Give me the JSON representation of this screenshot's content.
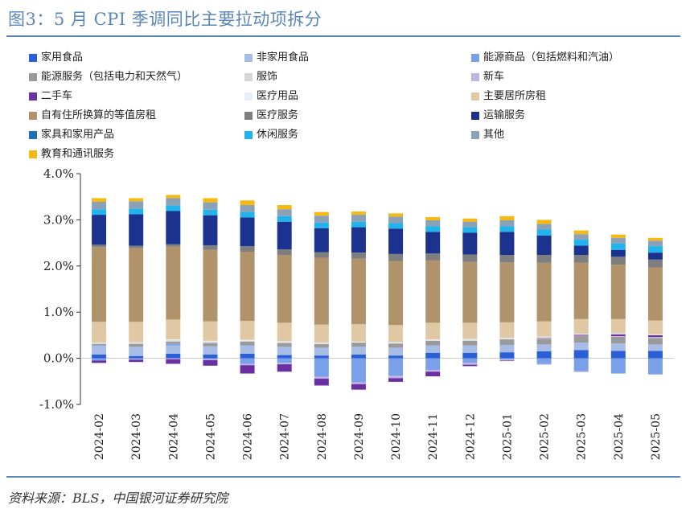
{
  "header": {
    "title": "图3：5 月 CPI 季调同比主要拉动项拆分"
  },
  "footer": {
    "source": "资料来源：BLS，中国银河证券研究院"
  },
  "chart_data": {
    "type": "bar",
    "stacked": true,
    "categories": [
      "2024-02",
      "2024-03",
      "2024-04",
      "2024-05",
      "2024-06",
      "2024-07",
      "2024-08",
      "2024-09",
      "2024-10",
      "2024-11",
      "2024-12",
      "2025-01",
      "2025-02",
      "2025-03",
      "2025-04",
      "2025-05"
    ],
    "ylim": [
      -1.0,
      4.0
    ],
    "yticks": [
      "4.0%",
      "3.0%",
      "2.0%",
      "1.0%",
      "0.0%",
      "-1.0%"
    ],
    "ytick_values": [
      4.0,
      3.0,
      2.0,
      1.0,
      0.0,
      -1.0
    ],
    "legend_placement": "top",
    "series": [
      {
        "name": "家用食品",
        "color": "#2a5fd6",
        "values": [
          0.08,
          0.05,
          0.1,
          0.08,
          0.1,
          0.07,
          0.06,
          0.08,
          0.06,
          0.12,
          0.12,
          0.13,
          0.15,
          0.18,
          0.16,
          0.16
        ]
      },
      {
        "name": "非家用食品",
        "color": "#a7bde6",
        "values": [
          0.2,
          0.2,
          0.18,
          0.18,
          0.18,
          0.18,
          0.17,
          0.17,
          0.17,
          0.16,
          0.16,
          0.16,
          0.15,
          0.16,
          0.16,
          0.14
        ]
      },
      {
        "name": "能源商品（包括燃料和汽油）",
        "color": "#7aa0ea",
        "values": [
          -0.05,
          -0.02,
          0.03,
          -0.02,
          -0.12,
          -0.1,
          -0.4,
          -0.52,
          -0.38,
          -0.25,
          -0.1,
          -0.02,
          -0.12,
          -0.28,
          -0.33,
          -0.35
        ]
      },
      {
        "name": "能源服务（包括电力和天然气）",
        "color": "#9a9a9a",
        "values": [
          0.03,
          0.06,
          0.05,
          0.07,
          0.08,
          0.08,
          0.08,
          0.09,
          0.09,
          0.1,
          0.1,
          0.12,
          0.12,
          0.14,
          0.15,
          0.14
        ]
      },
      {
        "name": "服饰",
        "color": "#d6d6d6",
        "values": [
          0.02,
          0.03,
          0.03,
          0.03,
          0.02,
          0.02,
          0.01,
          0.0,
          0.01,
          0.01,
          0.02,
          0.01,
          0.02,
          0.01,
          0.01,
          0.01
        ]
      },
      {
        "name": "新车",
        "color": "#c3b4e6",
        "values": [
          0.0,
          -0.01,
          -0.02,
          -0.02,
          -0.03,
          -0.03,
          -0.04,
          -0.04,
          -0.05,
          -0.04,
          -0.04,
          -0.03,
          -0.02,
          -0.02,
          0.0,
          0.01
        ]
      },
      {
        "name": "二手车",
        "color": "#6a2fa0",
        "values": [
          -0.05,
          -0.05,
          -0.1,
          -0.12,
          -0.18,
          -0.16,
          -0.15,
          -0.12,
          -0.08,
          -0.1,
          -0.03,
          -0.01,
          0.01,
          0.02,
          0.04,
          0.04
        ]
      },
      {
        "name": "医疗用品",
        "color": "#e9eff8",
        "values": [
          0.01,
          0.01,
          0.02,
          0.02,
          0.02,
          0.02,
          0.02,
          0.02,
          0.02,
          0.02,
          0.02,
          0.02,
          0.02,
          0.02,
          0.02,
          0.02
        ]
      },
      {
        "name": "主要居所房租",
        "color": "#e0c8a5",
        "values": [
          0.45,
          0.44,
          0.43,
          0.42,
          0.41,
          0.4,
          0.39,
          0.38,
          0.37,
          0.36,
          0.35,
          0.34,
          0.33,
          0.32,
          0.31,
          0.3
        ]
      },
      {
        "name": "自有住所换算的等值房租",
        "color": "#b0936a",
        "values": [
          1.62,
          1.6,
          1.58,
          1.55,
          1.5,
          1.47,
          1.45,
          1.42,
          1.39,
          1.35,
          1.32,
          1.3,
          1.27,
          1.22,
          1.18,
          1.15
        ]
      },
      {
        "name": "医疗服务",
        "color": "#7e7e7e",
        "values": [
          0.05,
          0.05,
          0.05,
          0.1,
          0.12,
          0.12,
          0.12,
          0.13,
          0.15,
          0.15,
          0.16,
          0.16,
          0.17,
          0.17,
          0.17,
          0.17
        ]
      },
      {
        "name": "运输服务",
        "color": "#1b338f",
        "values": [
          0.65,
          0.68,
          0.72,
          0.65,
          0.62,
          0.6,
          0.52,
          0.55,
          0.55,
          0.47,
          0.47,
          0.5,
          0.42,
          0.2,
          0.15,
          0.15
        ]
      },
      {
        "name": "家具和家用产品",
        "color": "#1f6fb8",
        "values": [
          0.0,
          0.0,
          0.0,
          0.0,
          0.0,
          0.0,
          0.0,
          0.0,
          0.0,
          0.0,
          0.0,
          0.0,
          0.0,
          0.0,
          0.0,
          0.0
        ]
      },
      {
        "name": "休闲服务",
        "color": "#22b3ec",
        "values": [
          0.12,
          0.12,
          0.12,
          0.12,
          0.12,
          0.12,
          0.12,
          0.12,
          0.12,
          0.12,
          0.12,
          0.12,
          0.13,
          0.13,
          0.14,
          0.14
        ]
      },
      {
        "name": "其他",
        "color": "#8aa1b8",
        "values": [
          0.16,
          0.16,
          0.16,
          0.16,
          0.15,
          0.15,
          0.15,
          0.15,
          0.14,
          0.13,
          0.12,
          0.13,
          0.12,
          0.12,
          0.12,
          0.12
        ]
      },
      {
        "name": "教育和通讯服务",
        "color": "#f5b912",
        "values": [
          0.08,
          0.07,
          0.07,
          0.09,
          0.1,
          0.09,
          0.08,
          0.07,
          0.07,
          0.07,
          0.07,
          0.09,
          0.09,
          0.08,
          0.07,
          0.06
        ]
      }
    ]
  }
}
